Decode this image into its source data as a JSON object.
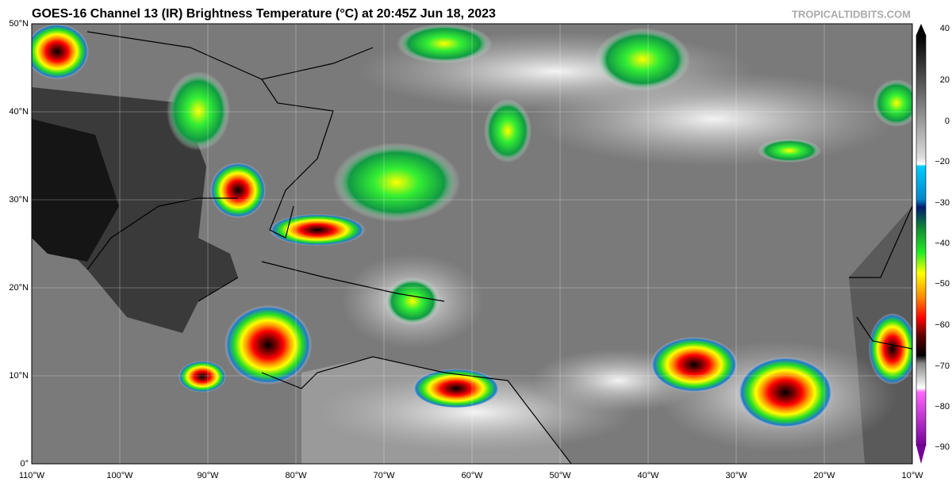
{
  "header": {
    "title": "GOES-16 Channel 13 (IR) Brightness Temperature (°C) at 20:45Z Jun 18, 2023",
    "credit": "TROPICALTIDBITS.COM"
  },
  "axes": {
    "lat_labels": [
      "50°N",
      "40°N",
      "30°N",
      "20°N",
      "10°N",
      "0°"
    ],
    "lon_labels": [
      "110°W",
      "100°W",
      "90°W",
      "80°W",
      "70°W",
      "60°W",
      "50°W",
      "40°W",
      "30°W",
      "20°W",
      "10°W"
    ]
  },
  "colorbar": {
    "ticks": [
      "40",
      "20",
      "0",
      "−20",
      "−30",
      "−40",
      "−50",
      "−60",
      "−70",
      "−80",
      "−90"
    ]
  }
}
